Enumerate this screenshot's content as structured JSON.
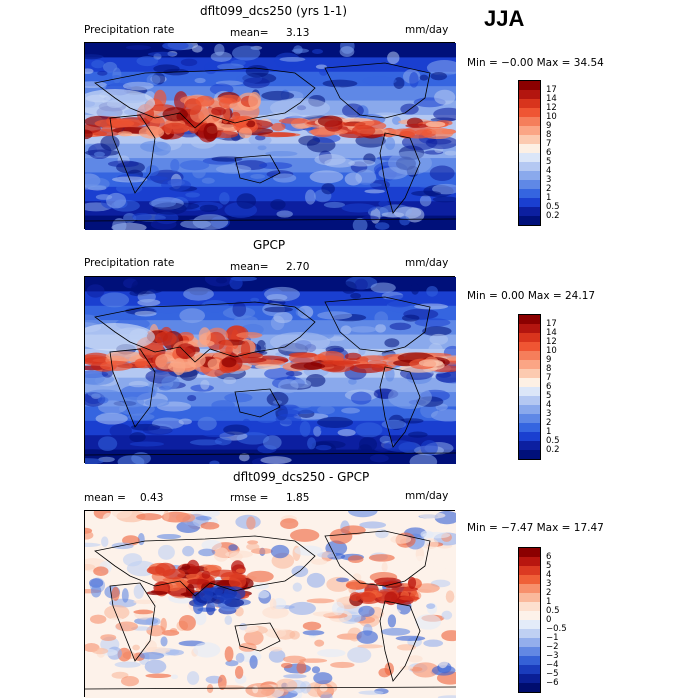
{
  "season": "JJA",
  "panels": [
    {
      "title": "dflt099_dcs250 (yrs 1-1)",
      "left_label": "Precipitation rate",
      "stat_label": "mean=",
      "stat_value": "3.13",
      "extra_stat_label": "",
      "extra_stat_value": "",
      "units": "mm/day",
      "minmax": "Min = −0.00 Max = 34.54",
      "scale": "sequential",
      "colorbar_labels": [
        "17",
        "14",
        "12",
        "10",
        "9",
        "8",
        "7",
        "6",
        "5",
        "4",
        "3",
        "2",
        "1",
        "0.5",
        "0.2"
      ]
    },
    {
      "title": "GPCP",
      "left_label": "Precipitation rate",
      "stat_label": "mean=",
      "stat_value": "2.70",
      "extra_stat_label": "",
      "extra_stat_value": "",
      "units": "mm/day",
      "minmax": "Min = 0.00 Max = 24.17",
      "scale": "sequential",
      "colorbar_labels": [
        "17",
        "14",
        "12",
        "10",
        "9",
        "8",
        "7",
        "6",
        "5",
        "4",
        "3",
        "2",
        "1",
        "0.5",
        "0.2"
      ]
    },
    {
      "title": "dflt099_dcs250 - GPCP",
      "left_label": "",
      "stat_label": "mean =",
      "stat_value": "0.43",
      "extra_stat_label": "rmse =",
      "extra_stat_value": "1.85",
      "units": "mm/day",
      "minmax": "Min = −7.47 Max = 17.47",
      "scale": "diverging",
      "colorbar_labels": [
        "6",
        "5",
        "4",
        "3",
        "2",
        "1",
        "0.5",
        "0",
        "−0.5",
        "−1",
        "−2",
        "−3",
        "−4",
        "−5",
        "−6"
      ]
    }
  ],
  "chart_data": [
    {
      "type": "heatmap",
      "title": "dflt099_dcs250 (yrs 1-1)",
      "quantity": "Precipitation rate",
      "units": "mm/day",
      "mean": 3.13,
      "min": -0.0,
      "max": 34.54,
      "colorbar_levels": [
        0.2,
        0.5,
        1,
        2,
        3,
        4,
        5,
        6,
        7,
        8,
        9,
        10,
        12,
        14,
        17
      ]
    },
    {
      "type": "heatmap",
      "title": "GPCP",
      "quantity": "Precipitation rate",
      "units": "mm/day",
      "mean": 2.7,
      "min": 0.0,
      "max": 24.17,
      "colorbar_levels": [
        0.2,
        0.5,
        1,
        2,
        3,
        4,
        5,
        6,
        7,
        8,
        9,
        10,
        12,
        14,
        17
      ]
    },
    {
      "type": "heatmap",
      "title": "dflt099_dcs250 - GPCP",
      "units": "mm/day",
      "mean": 0.43,
      "rmse": 1.85,
      "min": -7.47,
      "max": 17.47,
      "colorbar_levels": [
        -6,
        -5,
        -4,
        -3,
        -2,
        -1,
        -0.5,
        0,
        0.5,
        1,
        2,
        3,
        4,
        5,
        6
      ]
    }
  ],
  "colors": {
    "sequential": [
      "#8b0000",
      "#b3150f",
      "#d8341d",
      "#ef5533",
      "#f57e5b",
      "#fba585",
      "#fccab0",
      "#fdf0e4",
      "#dbe6f8",
      "#b4c8f2",
      "#8aa9ec",
      "#5f88e6",
      "#3565e0",
      "#1a3fd0",
      "#0c1fa0",
      "#00107a"
    ],
    "diverging": [
      "#8b0000",
      "#b8160f",
      "#db3a22",
      "#ef6038",
      "#f7906c",
      "#fab99c",
      "#fde0cf",
      "#fdf2ea",
      "#e3ebf9",
      "#bfd0f3",
      "#93aeec",
      "#6288e3",
      "#3561d6",
      "#1a3cbc",
      "#0a1f96",
      "#000d6e"
    ]
  }
}
